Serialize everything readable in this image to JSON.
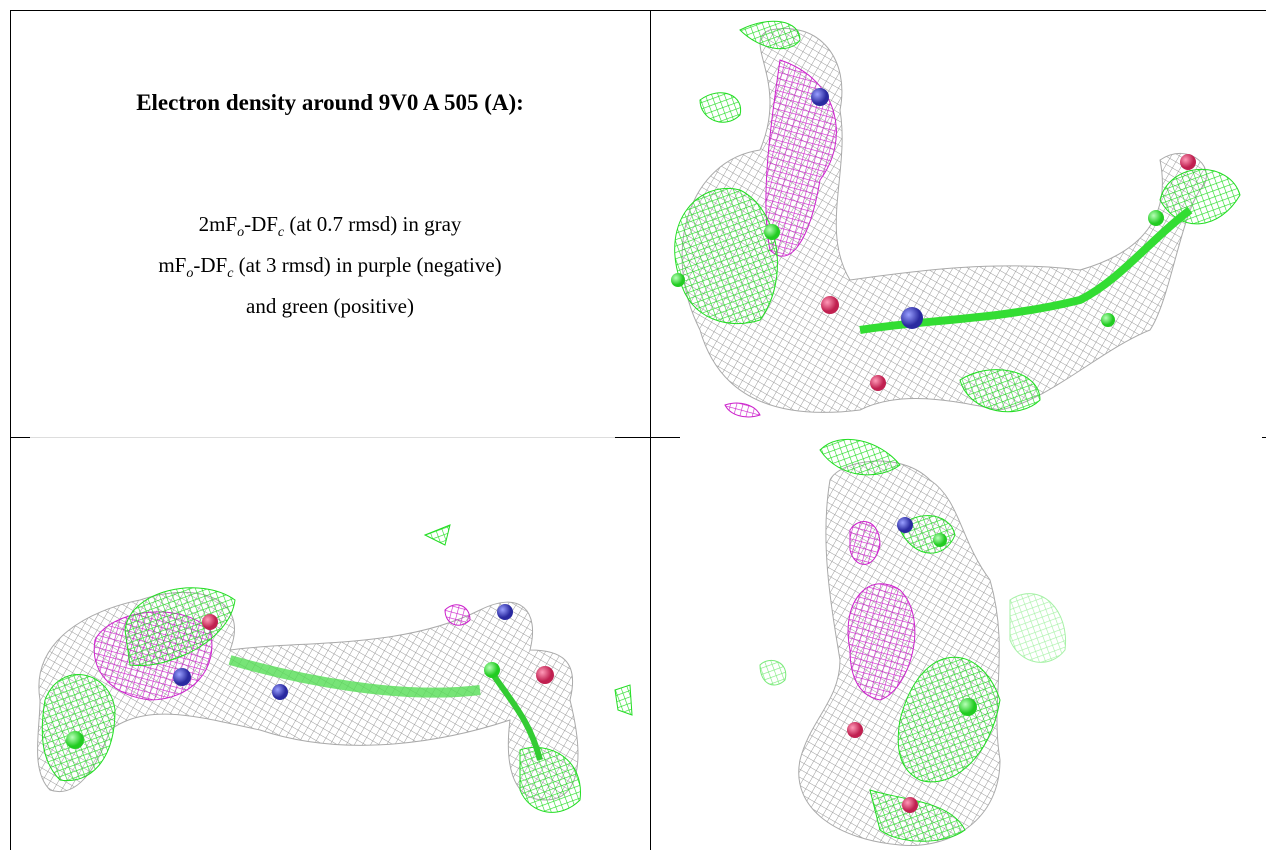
{
  "header": {
    "title": "Electron density around 9V0 A 505 (A):"
  },
  "legend": {
    "line1": [
      "2mF",
      "o",
      "-DF",
      "c",
      " (at 0.7 rmsd) in gray"
    ],
    "line2": [
      "mF",
      "o",
      "-DF",
      "c",
      " (at 3 rmsd) in purple (negative)"
    ],
    "line3": "and green (positive)"
  }
}
